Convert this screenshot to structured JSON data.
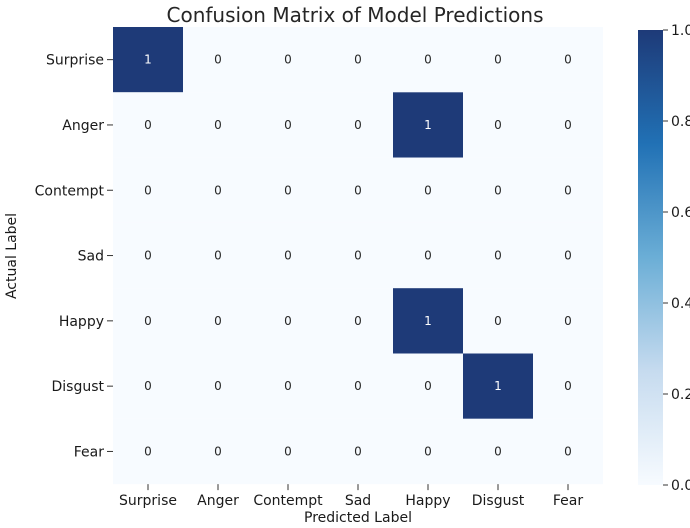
{
  "chart_data": {
    "type": "heatmap",
    "title": "Confusion Matrix of Model Predictions",
    "xlabel": "Predicted Label",
    "ylabel": "Actual Label",
    "x_categories": [
      "Surprise",
      "Anger",
      "Contempt",
      "Sad",
      "Happy",
      "Disgust",
      "Fear"
    ],
    "y_categories": [
      "Surprise",
      "Anger",
      "Contempt",
      "Sad",
      "Happy",
      "Disgust",
      "Fear"
    ],
    "values": [
      [
        1,
        0,
        0,
        0,
        0,
        0,
        0
      ],
      [
        0,
        0,
        0,
        0,
        1,
        0,
        0
      ],
      [
        0,
        0,
        0,
        0,
        0,
        0,
        0
      ],
      [
        0,
        0,
        0,
        0,
        0,
        0,
        0
      ],
      [
        0,
        0,
        0,
        0,
        1,
        0,
        0
      ],
      [
        0,
        0,
        0,
        0,
        0,
        1,
        0
      ],
      [
        0,
        0,
        0,
        0,
        0,
        0,
        0
      ]
    ],
    "colorbar": {
      "range": [
        0.0,
        1.0
      ],
      "ticks": [
        "0.0",
        "0.2",
        "0.4",
        "0.6",
        "0.8",
        "1.0"
      ],
      "colormap": "Blues",
      "low_color": "#f7fbff",
      "high_color": "#1e3a78"
    },
    "grid": false
  }
}
